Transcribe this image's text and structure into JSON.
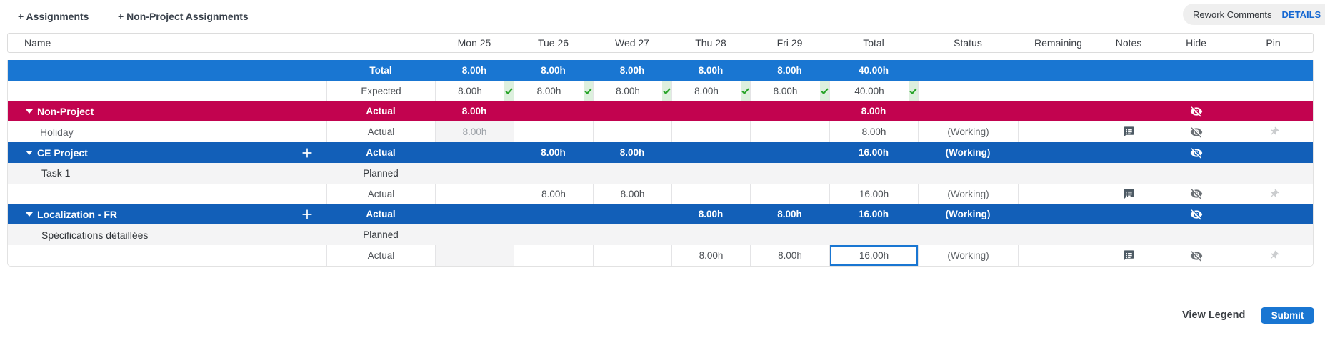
{
  "toolbar": {
    "assignments_button": "+ Assignments",
    "non_project_assignments_button": "+ Non-Project Assignments",
    "rework_comments_button": "Rework Comments",
    "details_button": "DETAILS"
  },
  "table": {
    "header": {
      "name": "Name",
      "label": "",
      "mon": "Mon 25",
      "tue": "Tue 26",
      "wed": "Wed 27",
      "thu": "Thu 28",
      "fri": "Fri 29",
      "total": "Total",
      "status": "Status",
      "remaining": "Remaining",
      "notes": "Notes",
      "hide": "Hide",
      "pin": "Pin"
    },
    "rows": [
      {
        "kind": "total",
        "label": "Total",
        "values": {
          "mon": "8.00h",
          "tue": "8.00h",
          "wed": "8.00h",
          "thu": "8.00h",
          "fri": "8.00h",
          "total": "40.00h"
        }
      },
      {
        "kind": "expected",
        "label": "Expected",
        "values": {
          "mon": "8.00h",
          "tue": "8.00h",
          "wed": "8.00h",
          "thu": "8.00h",
          "fri": "8.00h",
          "total": "40.00h"
        },
        "checks": [
          "mon",
          "tue",
          "wed",
          "thu",
          "fri",
          "total"
        ]
      },
      {
        "kind": "group",
        "color": "red",
        "name": "Non-Project",
        "caret": true,
        "plus": false,
        "label": "Actual",
        "values": {
          "mon": "8.00h",
          "total": "8.00h"
        },
        "status": "",
        "icons": {
          "notes": false,
          "hide": true,
          "pin": false
        }
      },
      {
        "kind": "entry",
        "name": "Holiday",
        "label": "Actual",
        "values": {
          "mon": "8.00h",
          "total": "8.00h"
        },
        "disabled": [
          "mon"
        ],
        "status": "(Working)",
        "icons": {
          "notes": true,
          "hide": true,
          "pin": true
        }
      },
      {
        "kind": "group",
        "color": "blue",
        "name": "CE Project",
        "caret": true,
        "plus": true,
        "label": "Actual",
        "values": {
          "tue": "8.00h",
          "wed": "8.00h",
          "total": "16.00h"
        },
        "status": "(Working)",
        "icons": {
          "notes": false,
          "hide": true,
          "pin": false
        }
      },
      {
        "kind": "planned",
        "name": "Task 1",
        "label": "Planned"
      },
      {
        "kind": "entry",
        "name": "",
        "label": "Actual",
        "values": {
          "tue": "8.00h",
          "wed": "8.00h",
          "total": "16.00h"
        },
        "status": "(Working)",
        "icons": {
          "notes": true,
          "hide": true,
          "pin": true
        }
      },
      {
        "kind": "group",
        "color": "blue",
        "name": "Localization - FR",
        "caret": true,
        "plus": true,
        "label": "Actual",
        "values": {
          "thu": "8.00h",
          "fri": "8.00h",
          "total": "16.00h"
        },
        "status": "(Working)",
        "icons": {
          "notes": false,
          "hide": true,
          "pin": false
        }
      },
      {
        "kind": "planned",
        "name": "Spécifications détaillées",
        "label": "Planned"
      },
      {
        "kind": "entry",
        "name": "",
        "label": "Actual",
        "values": {
          "thu": "8.00h",
          "fri": "8.00h",
          "total": "16.00h"
        },
        "disabled": [
          "mon"
        ],
        "focused": "total",
        "status": "(Working)",
        "icons": {
          "notes": true,
          "hide": true,
          "pin": true
        }
      }
    ]
  },
  "footer": {
    "view_legend_button": "View Legend",
    "submit_button": "Submit"
  },
  "colors": {
    "total_row_blue": "#1976d2",
    "project_row_blue": "#125fb8",
    "non_project_row_red": "#c2034f",
    "disabled_cell_gray": "#f4f4f5",
    "focus_border_blue": "#1976d2",
    "check_green": "#28a428",
    "check_zone_bg": "#ddf0de",
    "details_link_blue": "#1668d2",
    "submit_button_blue": "#1976d2"
  }
}
